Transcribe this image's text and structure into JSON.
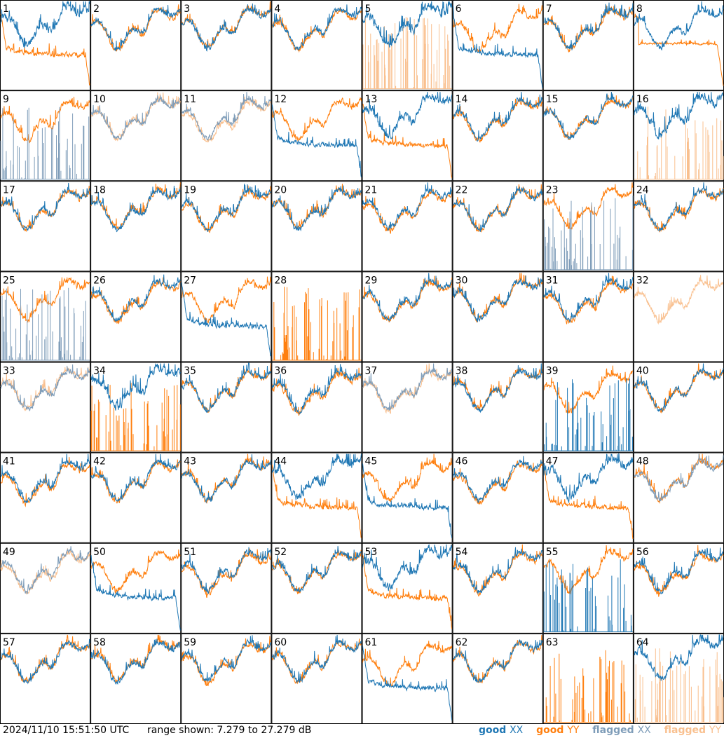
{
  "figure": {
    "timestamp": "2024/11/10 15:51:50 UTC",
    "range_text": "range shown: 7.279 to 27.279 dB",
    "legend": [
      {
        "key": "good_xx",
        "word1": "good",
        "word2": "XX",
        "color": "#1f77b4"
      },
      {
        "key": "good_yy",
        "word1": "good",
        "word2": "YY",
        "color": "#ff7f0e"
      },
      {
        "key": "flagged_xx",
        "word1": "flagged",
        "word2": "XX",
        "color": "#7f9db9"
      },
      {
        "key": "flagged_yy",
        "word1": "flagged",
        "word2": "YY",
        "color": "#f9c08f"
      }
    ]
  },
  "chart_data": {
    "type": "line",
    "layout": "8x8 small multiples, one panel per antenna",
    "ylim": [
      7.279,
      27.279
    ],
    "yunit": "dB",
    "grid": false,
    "series_styles": {
      "xx": {
        "name": "XX",
        "good_color": "#1f77b4",
        "flagged_color": "#7f9db9"
      },
      "yy": {
        "name": "YY",
        "good_color": "#ff7f0e",
        "flagged_color": "#f9c08f"
      }
    },
    "panels": [
      {
        "label": "1",
        "xx": "broad",
        "yy": "dip",
        "xx_flag": false,
        "yy_flag": false
      },
      {
        "label": "2",
        "xx": "normal",
        "yy": "normal",
        "xx_flag": false,
        "yy_flag": false
      },
      {
        "label": "3",
        "xx": "normal",
        "yy": "normal",
        "xx_flag": false,
        "yy_flag": false
      },
      {
        "label": "4",
        "xx": "normal",
        "yy": "normal",
        "xx_flag": false,
        "yy_flag": false
      },
      {
        "label": "5",
        "xx": "broad",
        "yy": "spikes",
        "xx_flag": false,
        "yy_flag": true
      },
      {
        "label": "6",
        "xx": "dip",
        "yy": "normal",
        "xx_flag": false,
        "yy_flag": false
      },
      {
        "label": "7",
        "xx": "normal",
        "yy": "normal",
        "xx_flag": false,
        "yy_flag": false
      },
      {
        "label": "8",
        "xx": "normal",
        "yy": "flat",
        "xx_flag": false,
        "yy_flag": false
      },
      {
        "label": "9",
        "xx": "spikes",
        "yy": "normal",
        "xx_flag": true,
        "yy_flag": false
      },
      {
        "label": "10",
        "xx": "normal",
        "yy": "normal",
        "xx_flag": true,
        "yy_flag": true
      },
      {
        "label": "11",
        "xx": "normal",
        "yy": "normal",
        "xx_flag": true,
        "yy_flag": true
      },
      {
        "label": "12",
        "xx": "dip",
        "yy": "normal",
        "xx_flag": false,
        "yy_flag": false
      },
      {
        "label": "13",
        "xx": "broad",
        "yy": "dip",
        "xx_flag": false,
        "yy_flag": false
      },
      {
        "label": "14",
        "xx": "normal",
        "yy": "normal",
        "xx_flag": false,
        "yy_flag": false
      },
      {
        "label": "15",
        "xx": "normal",
        "yy": "normal",
        "xx_flag": false,
        "yy_flag": false
      },
      {
        "label": "16",
        "xx": "broad",
        "yy": "spikes",
        "xx_flag": false,
        "yy_flag": true
      },
      {
        "label": "17",
        "xx": "normal",
        "yy": "normal",
        "xx_flag": false,
        "yy_flag": false
      },
      {
        "label": "18",
        "xx": "normal",
        "yy": "normal",
        "xx_flag": false,
        "yy_flag": false
      },
      {
        "label": "19",
        "xx": "normal",
        "yy": "normal",
        "xx_flag": false,
        "yy_flag": false
      },
      {
        "label": "20",
        "xx": "normal",
        "yy": "normal",
        "xx_flag": false,
        "yy_flag": false
      },
      {
        "label": "21",
        "xx": "normal",
        "yy": "normal",
        "xx_flag": false,
        "yy_flag": false
      },
      {
        "label": "22",
        "xx": "normal",
        "yy": "normal",
        "xx_flag": false,
        "yy_flag": false
      },
      {
        "label": "23",
        "xx": "spikes",
        "yy": "normal",
        "xx_flag": true,
        "yy_flag": false
      },
      {
        "label": "24",
        "xx": "normal",
        "yy": "normal",
        "xx_flag": false,
        "yy_flag": false
      },
      {
        "label": "25",
        "xx": "spikes",
        "yy": "normal",
        "xx_flag": true,
        "yy_flag": false
      },
      {
        "label": "26",
        "xx": "normal",
        "yy": "normal",
        "xx_flag": false,
        "yy_flag": false
      },
      {
        "label": "27",
        "xx": "dip",
        "yy": "normal",
        "xx_flag": false,
        "yy_flag": false
      },
      {
        "label": "28",
        "xx": "none",
        "yy": "spikes",
        "xx_flag": false,
        "yy_flag": false
      },
      {
        "label": "29",
        "xx": "normal",
        "yy": "normal",
        "xx_flag": false,
        "yy_flag": false
      },
      {
        "label": "30",
        "xx": "normal",
        "yy": "normal",
        "xx_flag": false,
        "yy_flag": false
      },
      {
        "label": "31",
        "xx": "normal",
        "yy": "normal",
        "xx_flag": false,
        "yy_flag": false
      },
      {
        "label": "32",
        "xx": "none",
        "yy": "normal",
        "xx_flag": false,
        "yy_flag": true
      },
      {
        "label": "33",
        "xx": "normal",
        "yy": "normal",
        "xx_flag": true,
        "yy_flag": true
      },
      {
        "label": "34",
        "xx": "broad",
        "yy": "spikes",
        "xx_flag": false,
        "yy_flag": false
      },
      {
        "label": "35",
        "xx": "normal",
        "yy": "normal",
        "xx_flag": false,
        "yy_flag": false
      },
      {
        "label": "36",
        "xx": "normal",
        "yy": "normal",
        "xx_flag": false,
        "yy_flag": false
      },
      {
        "label": "37",
        "xx": "normal",
        "yy": "normal",
        "xx_flag": true,
        "yy_flag": true
      },
      {
        "label": "38",
        "xx": "normal",
        "yy": "normal",
        "xx_flag": false,
        "yy_flag": false
      },
      {
        "label": "39",
        "xx": "spikes",
        "yy": "normal",
        "xx_flag": false,
        "yy_flag": false
      },
      {
        "label": "40",
        "xx": "normal",
        "yy": "normal",
        "xx_flag": false,
        "yy_flag": false
      },
      {
        "label": "41",
        "xx": "normal",
        "yy": "normal",
        "xx_flag": false,
        "yy_flag": false
      },
      {
        "label": "42",
        "xx": "normal",
        "yy": "normal",
        "xx_flag": false,
        "yy_flag": false
      },
      {
        "label": "43",
        "xx": "normal",
        "yy": "normal",
        "xx_flag": false,
        "yy_flag": false
      },
      {
        "label": "44",
        "xx": "broad",
        "yy": "dip",
        "xx_flag": false,
        "yy_flag": false
      },
      {
        "label": "45",
        "xx": "dip",
        "yy": "normal",
        "xx_flag": false,
        "yy_flag": false
      },
      {
        "label": "46",
        "xx": "normal",
        "yy": "normal",
        "xx_flag": false,
        "yy_flag": false
      },
      {
        "label": "47",
        "xx": "broad",
        "yy": "dip",
        "xx_flag": false,
        "yy_flag": false
      },
      {
        "label": "48",
        "xx": "normal",
        "yy": "normal",
        "xx_flag": true,
        "yy_flag": false
      },
      {
        "label": "49",
        "xx": "normal",
        "yy": "normal",
        "xx_flag": true,
        "yy_flag": true
      },
      {
        "label": "50",
        "xx": "dip",
        "yy": "normal",
        "xx_flag": false,
        "yy_flag": false
      },
      {
        "label": "51",
        "xx": "normal",
        "yy": "normal",
        "xx_flag": false,
        "yy_flag": false
      },
      {
        "label": "52",
        "xx": "normal",
        "yy": "normal",
        "xx_flag": false,
        "yy_flag": false
      },
      {
        "label": "53",
        "xx": "broad",
        "yy": "dip",
        "xx_flag": false,
        "yy_flag": false
      },
      {
        "label": "54",
        "xx": "normal",
        "yy": "normal",
        "xx_flag": false,
        "yy_flag": false
      },
      {
        "label": "55",
        "xx": "spikes",
        "yy": "normal",
        "xx_flag": false,
        "yy_flag": false
      },
      {
        "label": "56",
        "xx": "normal",
        "yy": "normal",
        "xx_flag": false,
        "yy_flag": false
      },
      {
        "label": "57",
        "xx": "normal",
        "yy": "normal",
        "xx_flag": false,
        "yy_flag": false
      },
      {
        "label": "58",
        "xx": "normal",
        "yy": "normal",
        "xx_flag": false,
        "yy_flag": false
      },
      {
        "label": "59",
        "xx": "normal",
        "yy": "normal",
        "xx_flag": false,
        "yy_flag": false
      },
      {
        "label": "60",
        "xx": "normal",
        "yy": "normal",
        "xx_flag": false,
        "yy_flag": false
      },
      {
        "label": "61",
        "xx": "dip",
        "yy": "normal",
        "xx_flag": false,
        "yy_flag": false
      },
      {
        "label": "62",
        "xx": "normal",
        "yy": "normal",
        "xx_flag": false,
        "yy_flag": false
      },
      {
        "label": "63",
        "xx": "none",
        "yy": "spikes",
        "xx_flag": false,
        "yy_flag": false
      },
      {
        "label": "64",
        "xx": "broad",
        "yy": "spikes",
        "xx_flag": false,
        "yy_flag": true
      }
    ]
  }
}
